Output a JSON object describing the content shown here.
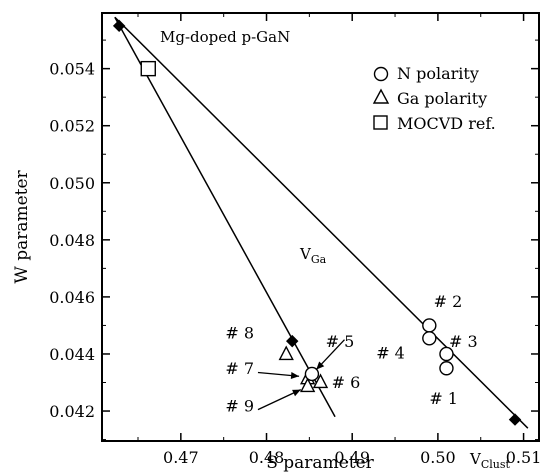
{
  "chart_data": {
    "type": "scatter",
    "xlabel": "S parameter",
    "ylabel": "W parameter",
    "xlim": [
      0.4608,
      0.5118
    ],
    "ylim": [
      0.04095,
      0.05595
    ],
    "x_ticks": [
      0.47,
      0.48,
      0.49,
      0.5,
      0.51
    ],
    "x_tick_labels": [
      "0.47",
      "0.48",
      "0.49",
      "0.50",
      "0.51"
    ],
    "y_ticks": [
      0.042,
      0.044,
      0.046,
      0.048,
      0.05,
      0.052,
      0.054
    ],
    "y_tick_labels": [
      "0.042",
      "0.044",
      "0.046",
      "0.048",
      "0.050",
      "0.052",
      "0.054"
    ],
    "grid": false,
    "legend_position": "top-right",
    "series": [
      {
        "name": "N polarity",
        "marker": "circle",
        "points": [
          {
            "x": 0.499,
            "y": 0.045
          },
          {
            "x": 0.499,
            "y": 0.04455
          },
          {
            "x": 0.501,
            "y": 0.044
          },
          {
            "x": 0.501,
            "y": 0.0435
          }
        ]
      },
      {
        "name": "Ga polarity",
        "marker": "triangle",
        "points": [
          {
            "x": 0.4823,
            "y": 0.044
          },
          {
            "x": 0.4848,
            "y": 0.04315
          },
          {
            "x": 0.4863,
            "y": 0.04302
          },
          {
            "x": 0.4848,
            "y": 0.04288
          }
        ]
      },
      {
        "name": "MOCVD ref.",
        "marker": "square",
        "points": [
          {
            "x": 0.4662,
            "y": 0.054
          }
        ]
      }
    ],
    "extra_markers": {
      "circle_open": [
        {
          "x": 0.4853,
          "y": 0.0433
        }
      ],
      "diamonds": [
        {
          "x": 0.4628,
          "y": 0.0555
        },
        {
          "x": 0.483,
          "y": 0.04445
        },
        {
          "x": 0.509,
          "y": 0.0417
        }
      ]
    },
    "lines": [
      {
        "from": {
          "x": 0.4623,
          "y": 0.0558
        },
        "to": {
          "x": 0.5105,
          "y": 0.0414
        }
      },
      {
        "from": {
          "x": 0.4623,
          "y": 0.0558
        },
        "to": {
          "x": 0.488,
          "y": 0.0418
        }
      }
    ],
    "annotations": {
      "mg_label": "Mg-doped p-GaN",
      "vga_main": "V",
      "vga_sub": "Ga",
      "vclust_main": "V",
      "vclust_sub": "Clust",
      "labels": [
        {
          "text": "# 2",
          "x": 0.4995,
          "y": 0.04565
        },
        {
          "text": "# 3",
          "x": 0.5013,
          "y": 0.04425
        },
        {
          "text": "# 4",
          "x": 0.4928,
          "y": 0.04385
        },
        {
          "text": "# 1",
          "x": 0.499,
          "y": 0.04225
        },
        {
          "text": "# 8",
          "x": 0.4752,
          "y": 0.04455
        },
        {
          "text": "# 5",
          "x": 0.4869,
          "y": 0.04425
        },
        {
          "text": "# 7",
          "x": 0.4752,
          "y": 0.0433
        },
        {
          "text": "# 6",
          "x": 0.4876,
          "y": 0.0428
        },
        {
          "text": "# 9",
          "x": 0.4752,
          "y": 0.04198
        }
      ],
      "arrows": [
        {
          "from": {
            "x": 0.4891,
            "y": 0.0445
          },
          "to": {
            "x": 0.4858,
            "y": 0.04345
          }
        },
        {
          "from": {
            "x": 0.479,
            "y": 0.04335
          },
          "to": {
            "x": 0.4838,
            "y": 0.04322
          }
        },
        {
          "from": {
            "x": 0.479,
            "y": 0.04205
          },
          "to": {
            "x": 0.484,
            "y": 0.04275
          }
        }
      ]
    }
  }
}
